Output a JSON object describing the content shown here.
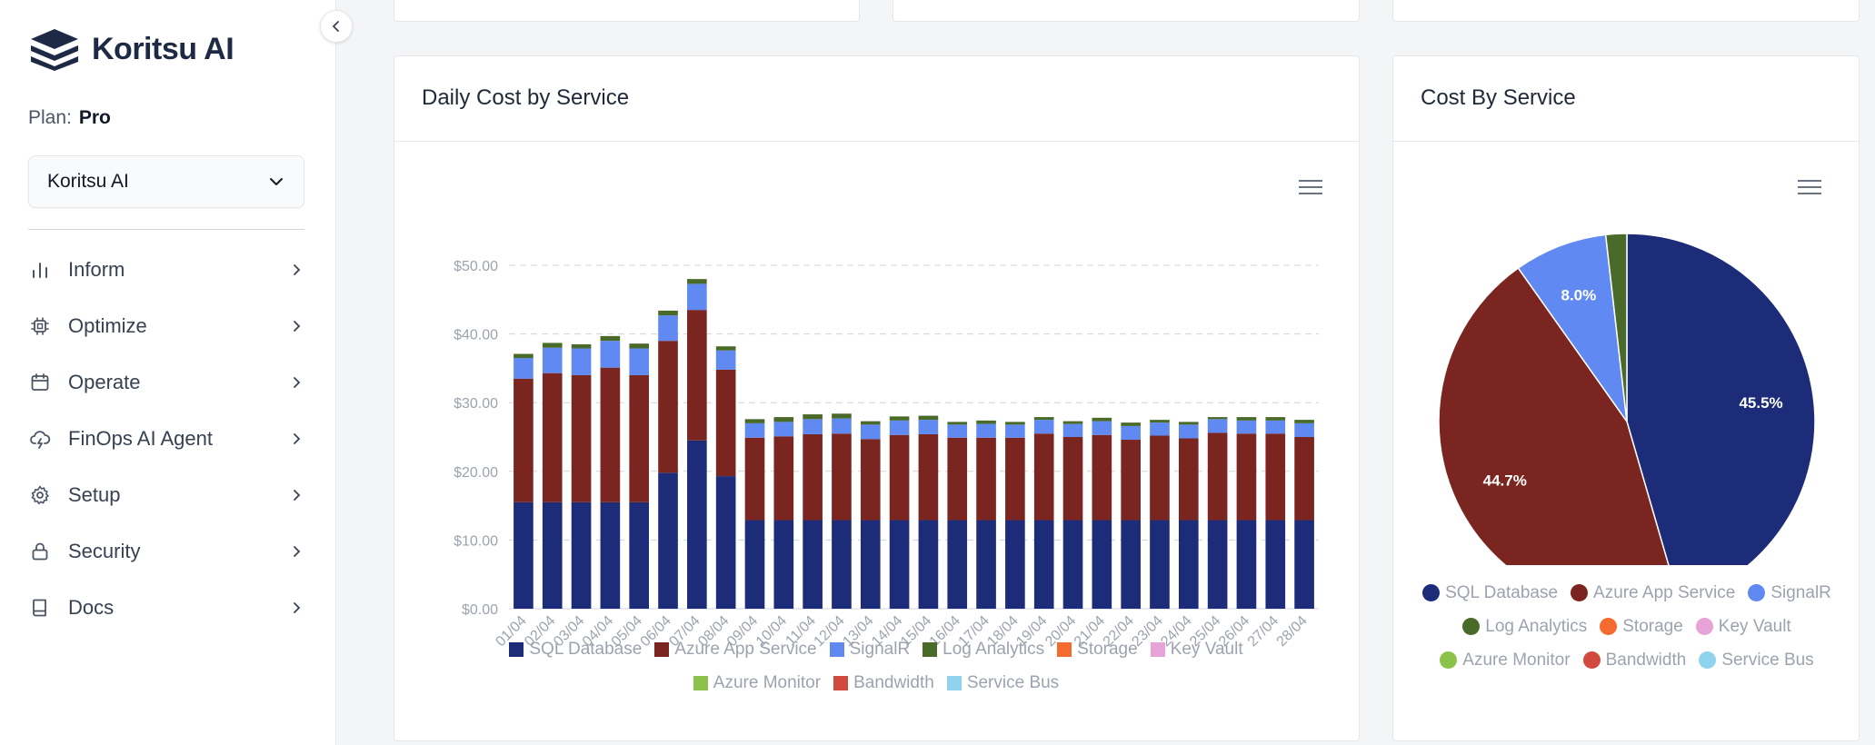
{
  "brand": {
    "name": "Koritsu AI"
  },
  "plan": {
    "label": "Plan:",
    "value": "Pro"
  },
  "org_select": {
    "value": "Koritsu AI"
  },
  "nav": [
    {
      "id": "inform",
      "label": "Inform",
      "icon": "bar-chart-icon"
    },
    {
      "id": "optimize",
      "label": "Optimize",
      "icon": "chip-icon"
    },
    {
      "id": "operate",
      "label": "Operate",
      "icon": "calendar-icon"
    },
    {
      "id": "finops-ai-agent",
      "label": "FinOps AI Agent",
      "icon": "cloud-lightning-icon"
    },
    {
      "id": "setup",
      "label": "Setup",
      "icon": "gear-icon"
    },
    {
      "id": "security",
      "label": "Security",
      "icon": "lock-icon"
    },
    {
      "id": "docs",
      "label": "Docs",
      "icon": "book-icon"
    }
  ],
  "daily_card": {
    "title": "Daily Cost by Service"
  },
  "pie_card": {
    "title": "Cost By Service"
  },
  "colors": {
    "SQL Database": "#1c2c78",
    "Azure App Service": "#7b2520",
    "SignalR": "#6189f2",
    "Log Analytics": "#4a6a2a",
    "Storage": "#f56a2f",
    "Key Vault": "#e6a3d8",
    "Azure Monitor": "#8bc34a",
    "Bandwidth": "#d1493f",
    "Service Bus": "#8fd3ec"
  },
  "chart_data": [
    {
      "type": "bar",
      "stacked": true,
      "title": "Daily Cost by Service",
      "categories": [
        "01/04",
        "02/04",
        "03/04",
        "04/04",
        "05/04",
        "06/04",
        "07/04",
        "08/04",
        "09/04",
        "10/04",
        "11/04",
        "12/04",
        "13/04",
        "14/04",
        "15/04",
        "16/04",
        "17/04",
        "18/04",
        "19/04",
        "20/04",
        "21/04",
        "22/04",
        "23/04",
        "24/04",
        "25/04",
        "26/04",
        "27/04",
        "28/04"
      ],
      "y_ticks": [
        "$0.00",
        "$10.00",
        "$20.00",
        "$30.00",
        "$40.00",
        "$50.00"
      ],
      "ylim": [
        0,
        50
      ],
      "grid": true,
      "legend_position": "bottom",
      "series": [
        {
          "name": "SQL Database",
          "values": [
            15.5,
            15.5,
            15.5,
            15.5,
            15.5,
            19.8,
            24.5,
            19.3,
            12.9,
            12.9,
            12.9,
            12.9,
            12.9,
            12.9,
            12.9,
            12.9,
            12.9,
            12.9,
            12.9,
            12.9,
            12.9,
            12.9,
            12.9,
            12.9,
            12.9,
            12.9,
            12.9,
            12.9
          ]
        },
        {
          "name": "Azure App Service",
          "values": [
            18.0,
            18.8,
            18.5,
            19.6,
            18.5,
            19.2,
            19.0,
            15.5,
            12.0,
            12.2,
            12.5,
            12.6,
            11.8,
            12.4,
            12.5,
            12.0,
            12.0,
            12.0,
            12.6,
            12.1,
            12.4,
            11.7,
            12.3,
            11.9,
            12.7,
            12.6,
            12.6,
            12.1
          ]
        },
        {
          "name": "SignalR",
          "values": [
            3.0,
            3.7,
            3.9,
            3.9,
            3.9,
            3.7,
            3.8,
            2.8,
            2.1,
            2.1,
            2.2,
            2.2,
            2.1,
            2.1,
            2.1,
            1.9,
            2.0,
            1.9,
            2.0,
            1.9,
            2.0,
            2.0,
            1.9,
            2.0,
            2.0,
            1.9,
            1.9,
            2.0
          ]
        },
        {
          "name": "Log Analytics",
          "values": [
            0.6,
            0.7,
            0.6,
            0.7,
            0.7,
            0.7,
            0.7,
            0.6,
            0.6,
            0.7,
            0.7,
            0.7,
            0.5,
            0.6,
            0.6,
            0.4,
            0.5,
            0.4,
            0.4,
            0.4,
            0.5,
            0.5,
            0.4,
            0.4,
            0.3,
            0.5,
            0.5,
            0.5
          ]
        },
        {
          "name": "Storage",
          "values": [
            0,
            0,
            0,
            0,
            0,
            0,
            0,
            0,
            0,
            0,
            0,
            0,
            0,
            0,
            0,
            0,
            0,
            0,
            0,
            0,
            0,
            0,
            0,
            0,
            0,
            0,
            0,
            0
          ]
        },
        {
          "name": "Key Vault",
          "values": [
            0,
            0,
            0,
            0,
            0,
            0,
            0,
            0,
            0,
            0,
            0,
            0,
            0,
            0,
            0,
            0,
            0,
            0,
            0,
            0,
            0,
            0,
            0,
            0,
            0,
            0,
            0,
            0
          ]
        },
        {
          "name": "Azure Monitor",
          "values": [
            0,
            0,
            0,
            0,
            0,
            0,
            0,
            0,
            0,
            0,
            0,
            0,
            0,
            0,
            0,
            0,
            0,
            0,
            0,
            0,
            0,
            0,
            0,
            0,
            0,
            0,
            0,
            0
          ]
        },
        {
          "name": "Bandwidth",
          "values": [
            0,
            0,
            0,
            0,
            0,
            0,
            0,
            0,
            0,
            0,
            0,
            0,
            0,
            0,
            0,
            0,
            0,
            0,
            0,
            0,
            0,
            0,
            0,
            0,
            0,
            0,
            0,
            0
          ]
        },
        {
          "name": "Service Bus",
          "values": [
            0,
            0,
            0,
            0,
            0,
            0,
            0,
            0,
            0,
            0,
            0,
            0,
            0,
            0,
            0,
            0,
            0,
            0,
            0,
            0,
            0,
            0,
            0,
            0,
            0,
            0,
            0,
            0
          ]
        }
      ]
    },
    {
      "type": "pie",
      "title": "Cost By Service",
      "legend_position": "bottom",
      "slices": [
        {
          "name": "SQL Database",
          "value": 45.5,
          "label": "45.5%"
        },
        {
          "name": "Azure App Service",
          "value": 44.7,
          "label": "44.7%"
        },
        {
          "name": "SignalR",
          "value": 8.0,
          "label": "8.0%"
        },
        {
          "name": "Log Analytics",
          "value": 1.8,
          "label": ""
        },
        {
          "name": "Storage",
          "value": 0,
          "label": ""
        },
        {
          "name": "Key Vault",
          "value": 0,
          "label": ""
        },
        {
          "name": "Azure Monitor",
          "value": 0,
          "label": ""
        },
        {
          "name": "Bandwidth",
          "value": 0,
          "label": ""
        },
        {
          "name": "Service Bus",
          "value": 0,
          "label": ""
        }
      ]
    }
  ]
}
